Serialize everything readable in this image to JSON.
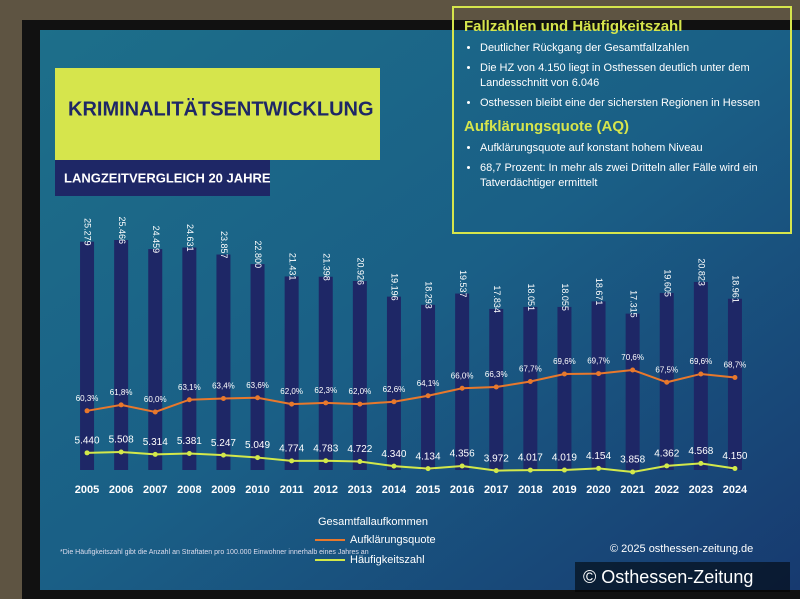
{
  "chart_data": {
    "type": "bar",
    "title": "KRIMINALITÄTSENTWICKLUNG",
    "subtitle": "LANGZEITVERGLEICH 20 JAHRE",
    "categories": [
      "2005",
      "2006",
      "2007",
      "2008",
      "2009",
      "2010",
      "2011",
      "2012",
      "2013",
      "2014",
      "2015",
      "2016",
      "2017",
      "2018",
      "2019",
      "2020",
      "2021",
      "2022",
      "2023",
      "2024"
    ],
    "series": [
      {
        "name": "Gesamtfallaufkommen",
        "type": "bar",
        "color": "#1e2766",
        "values": [
          25279,
          25466,
          24459,
          24631,
          23857,
          22800,
          21431,
          21398,
          20926,
          19196,
          18293,
          19537,
          17834,
          18051,
          18055,
          18671,
          17315,
          19605,
          20823,
          18961
        ],
        "value_labels": [
          "25.279",
          "25.466",
          "24.459",
          "24.631",
          "23.857",
          "22.800",
          "21.431",
          "21.398",
          "20.926",
          "19.196",
          "18.293",
          "19.537",
          "17.834",
          "18.051",
          "18.055",
          "18.671",
          "17.315",
          "19.605",
          "20.823",
          "18.961"
        ]
      },
      {
        "name": "Aufklärungsquote",
        "type": "line",
        "color": "#e8782c",
        "values": [
          60.3,
          61.8,
          60.0,
          63.1,
          63.4,
          63.6,
          62.0,
          62.3,
          62.0,
          62.6,
          64.1,
          66.0,
          66.3,
          67.7,
          69.6,
          69.7,
          70.6,
          67.5,
          69.6,
          68.7
        ],
        "value_labels": [
          "60,3%",
          "61,8%",
          "60,0%",
          "63,1%",
          "63,4%",
          "63,6%",
          "62,0%",
          "62,3%",
          "62,0%",
          "62,6%",
          "64,1%",
          "66,0%",
          "66,3%",
          "67,7%",
          "69,6%",
          "69,7%",
          "70,6%",
          "67,5%",
          "69,6%",
          "68,7%"
        ]
      },
      {
        "name": "Häufigkeitszahl",
        "type": "line",
        "color": "#d3e84a",
        "values": [
          5440,
          5508,
          5314,
          5381,
          5247,
          5049,
          4774,
          4783,
          4722,
          4340,
          4134,
          4356,
          3972,
          4017,
          4019,
          4154,
          3858,
          4362,
          4568,
          4150
        ],
        "value_labels": [
          "5.440",
          "5.508",
          "5.314",
          "5.381",
          "5.247",
          "5.049",
          "4.774",
          "4.783",
          "4.722",
          "4.340",
          "4.134",
          "4.356",
          "3.972",
          "4.017",
          "4.019",
          "4.154",
          "3.858",
          "4.362",
          "4.568",
          "4.150"
        ]
      }
    ]
  },
  "info_box": {
    "heading1": "Fallzahlen und Häufigkeitszahl",
    "bullets1": [
      "Deutlicher Rückgang der Gesamtfallzahlen",
      "Die HZ von 4.150 liegt in Osthessen deutlich unter dem Landesschnitt von 6.046",
      "Osthessen bleibt eine der sichersten Regionen in Hessen"
    ],
    "heading2": "Aufklärungsquote (AQ)",
    "bullets2": [
      "Aufklärungsquote auf konstant hohem Niveau",
      "68,7 Prozent: In mehr als zwei Dritteln aller Fälle wird ein Tatverdächtiger ermittelt"
    ]
  },
  "footnote": "*Die Häufigkeitszahl gibt die Anzahl an Straftaten pro 100.000 Einwohner innerhalb eines Jahres an",
  "watermark": {
    "small": "© 2025 osthessen-zeitung.de",
    "large": "© Osthessen-Zeitung"
  }
}
